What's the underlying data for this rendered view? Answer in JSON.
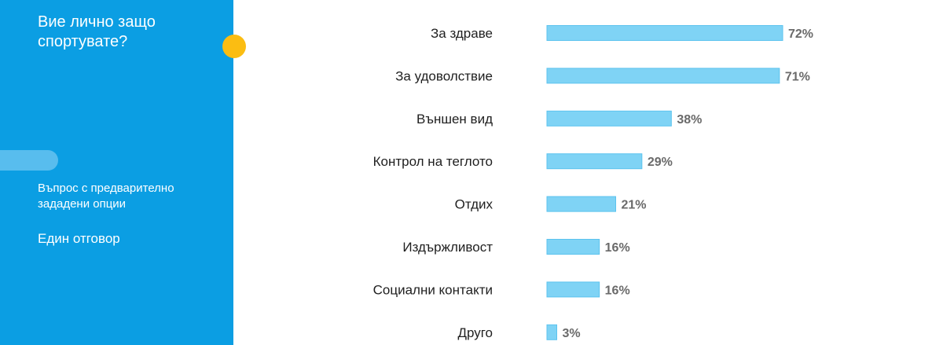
{
  "sidebar": {
    "question": "Вие лично защо спортувате?",
    "question_type": "Въпрос с предварително зададени опции",
    "answer_type": "Един отговор",
    "colors": {
      "background": "#0b9ee3",
      "pill": "#58bdee",
      "dot": "#fbbd12"
    }
  },
  "chart_data": {
    "type": "bar",
    "orientation": "horizontal",
    "categories": [
      "За здраве",
      "За удоволствие",
      "Външен вид",
      "Контрол на теглото",
      "Отдих",
      "Издържливост",
      "Социални контакти",
      "Друго"
    ],
    "values": [
      72,
      71,
      38,
      29,
      21,
      16,
      16,
      3
    ],
    "value_labels": [
      "72%",
      "71%",
      "38%",
      "29%",
      "21%",
      "16%",
      "16%",
      "3%"
    ],
    "unit": "%",
    "xlim": [
      0,
      100
    ],
    "grid": false,
    "legend": "none",
    "colors": {
      "bar_fill": "#7fd3f5",
      "bar_stroke": "#5cc3ee",
      "category_text": "#1f1f1f",
      "value_text": "#6a6a6a"
    }
  }
}
